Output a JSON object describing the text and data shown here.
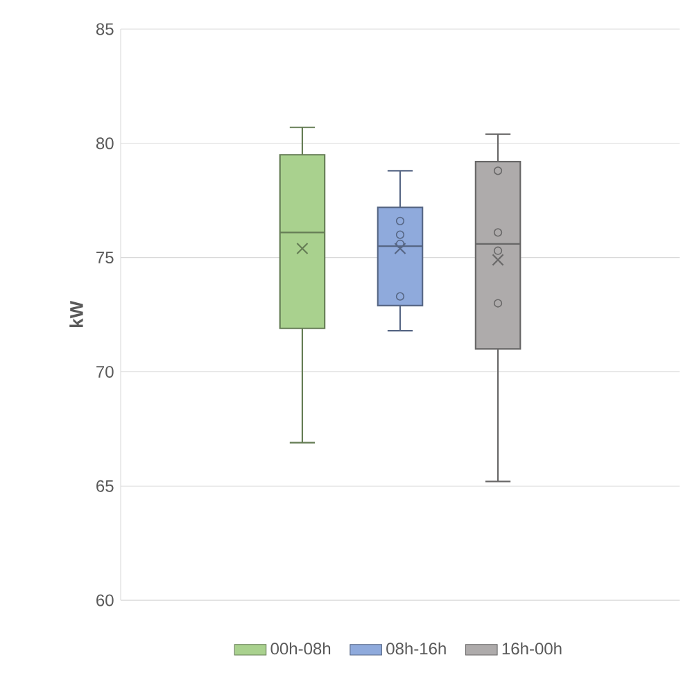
{
  "chart_data": {
    "type": "box",
    "ylabel": "kW",
    "categories": [
      null
    ],
    "ylim": [
      60,
      85
    ],
    "yticks": [
      60,
      65,
      70,
      75,
      80,
      85
    ],
    "grid": "y",
    "legend": "bottom",
    "series": [
      {
        "name": "00h-08h",
        "color": "#a9d18e",
        "boxes": [
          {
            "low": 66.9,
            "q1": 71.9,
            "median": 76.1,
            "q3": 79.5,
            "high": 80.7,
            "mean": 75.4
          }
        ]
      },
      {
        "name": "08h-16h",
        "color": "#8faadc",
        "boxes": [
          {
            "low": 71.8,
            "q1": 72.9,
            "median": 75.5,
            "q3": 77.2,
            "high": 78.8,
            "mean": 75.4,
            "outliers": [
              76.6,
              76.0,
              75.6,
              73.3
            ]
          }
        ]
      },
      {
        "name": "16h-00h",
        "color": "#aeabab",
        "boxes": [
          {
            "low": 65.2,
            "q1": 71.0,
            "median": 75.6,
            "q3": 79.2,
            "high": 80.4,
            "mean": 74.9,
            "outliers": [
              78.8,
              76.1,
              75.3,
              73.0
            ]
          }
        ]
      }
    ]
  }
}
